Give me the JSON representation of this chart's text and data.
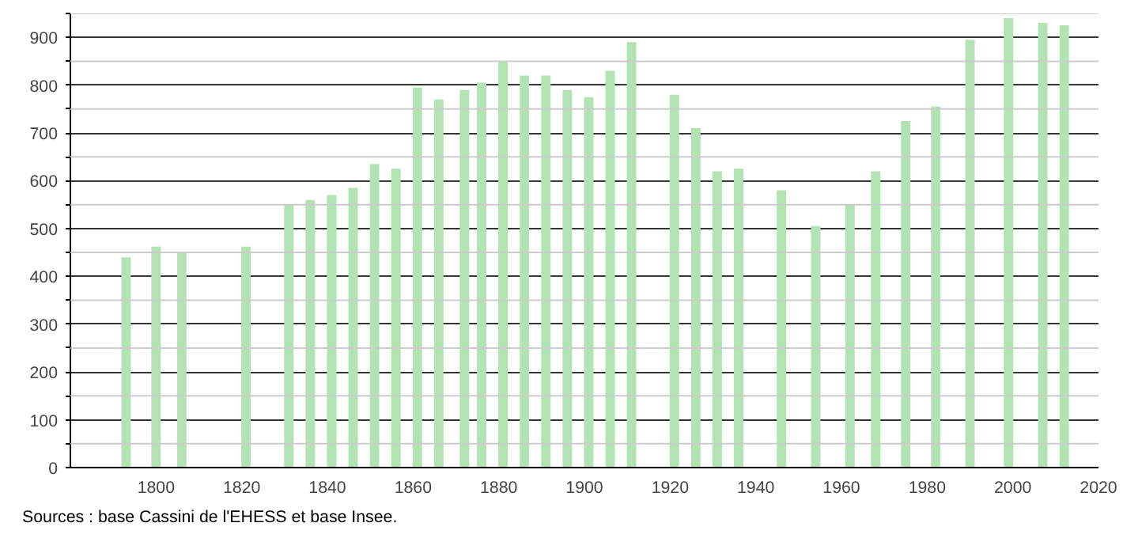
{
  "chart_data": {
    "type": "bar",
    "x": [
      1793,
      1800,
      1806,
      1821,
      1831,
      1836,
      1841,
      1846,
      1851,
      1856,
      1861,
      1866,
      1872,
      1876,
      1881,
      1886,
      1891,
      1896,
      1901,
      1906,
      1911,
      1921,
      1926,
      1931,
      1936,
      1946,
      1954,
      1962,
      1968,
      1975,
      1982,
      1990,
      1999,
      2007,
      2012
    ],
    "values": [
      440,
      462,
      450,
      462,
      550,
      560,
      570,
      585,
      635,
      625,
      795,
      770,
      790,
      805,
      850,
      820,
      820,
      790,
      775,
      830,
      890,
      780,
      710,
      620,
      625,
      580,
      505,
      550,
      620,
      725,
      755,
      895,
      940,
      930,
      925
    ],
    "color": "#b2e3b2",
    "xlim": [
      1780,
      2020
    ],
    "xticks": [
      1800,
      1820,
      1840,
      1860,
      1880,
      1900,
      1920,
      1940,
      1960,
      1980,
      2000,
      2020
    ],
    "ylim": [
      0,
      950
    ],
    "yticks": [
      0,
      {
        "value": 50,
        "label": null
      },
      100,
      {
        "value": 150,
        "label": null
      },
      200,
      {
        "value": 250,
        "label": null
      },
      300,
      {
        "value": 350,
        "label": null
      },
      400,
      {
        "value": 450,
        "label": null
      },
      500,
      {
        "value": 550,
        "label": null
      },
      600,
      {
        "value": 650,
        "label": null
      },
      700,
      {
        "value": 750,
        "label": null
      },
      800,
      {
        "value": 850,
        "label": null
      },
      900,
      {
        "value": 950,
        "label": null
      }
    ],
    "grid": "y",
    "annotations": [
      "Sources : base Cassini de l'EHESS et base Insee."
    ]
  }
}
